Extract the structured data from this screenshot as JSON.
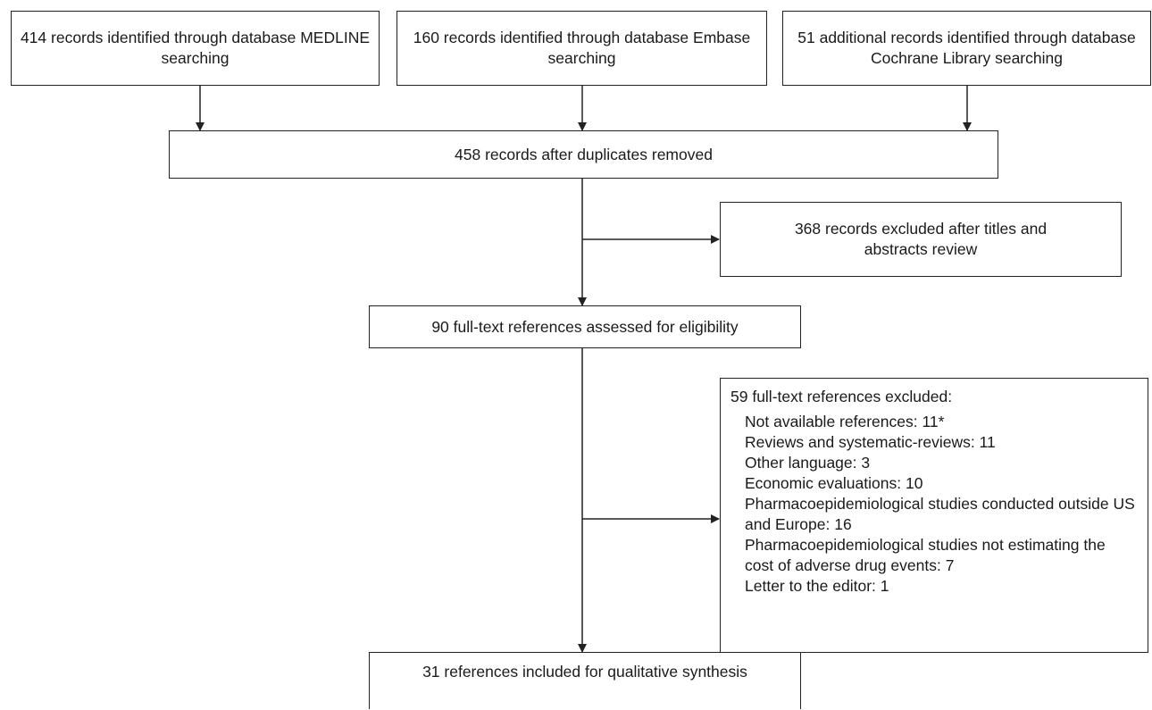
{
  "sources": [
    {
      "text": "414 records identified through database MEDLINE searching"
    },
    {
      "text": "160 records identified through database Embase searching"
    },
    {
      "text": "51 additional records identified through database Cochrane Library searching"
    }
  ],
  "after_duplicates": "458 records after duplicates removed",
  "excluded_titles": "368 records excluded after titles and abstracts review",
  "fulltext_assessed": "90 full-text references assessed for eligibility",
  "fulltext_excluded": {
    "heading": "59 full-text references excluded:",
    "items": [
      "Not available references: 11*",
      "Reviews and systematic-reviews: 11",
      "Other language: 3",
      "Economic evaluations: 10",
      "Pharmacoepidemiological studies conducted outside US and Europe: 16",
      "Pharmacoepidemiological studies not estimating the cost of adverse drug events: 7",
      "Letter to the editor: 1"
    ]
  },
  "included": "31 references included for qualitative synthesis"
}
